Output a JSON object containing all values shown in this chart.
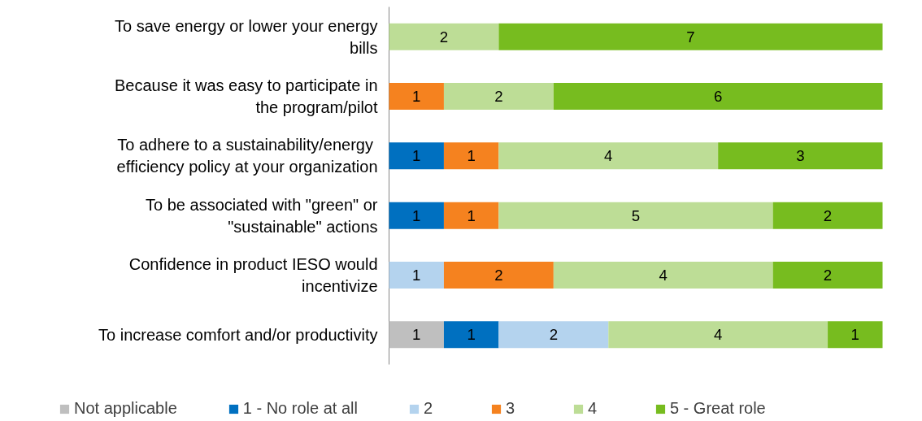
{
  "chart_data": {
    "type": "bar",
    "orientation": "horizontal",
    "stacked": true,
    "data_labels": true,
    "legend": "bottom",
    "categories": [
      "To save energy or lower your energy bills",
      "Because it was easy to participate in the program/pilot",
      "To adhere to  a sustainability/energy efficiency policy at your organization",
      "To be associated with \"green\" or \"sustainable\" actions",
      "Confidence in product IESO would incentivize",
      "To increase comfort and/or productivity"
    ],
    "series": [
      {
        "name": "Not applicable",
        "color": "#bfbfbf",
        "values": [
          null,
          null,
          null,
          null,
          null,
          1
        ]
      },
      {
        "name": "1 - No role at all",
        "color": "#0070c0",
        "values": [
          null,
          null,
          1,
          1,
          null,
          1
        ]
      },
      {
        "name": "2",
        "color": "#b4d3ee",
        "values": [
          null,
          null,
          null,
          null,
          1,
          2
        ]
      },
      {
        "name": "3",
        "color": "#f5821f",
        "values": [
          null,
          1,
          1,
          1,
          2,
          null
        ]
      },
      {
        "name": "4",
        "color": "#bddd96",
        "values": [
          2,
          2,
          4,
          5,
          4,
          4
        ]
      },
      {
        "name": "5 - Great role",
        "color": "#77bc1f",
        "values": [
          7,
          6,
          3,
          2,
          2,
          1
        ]
      }
    ]
  }
}
